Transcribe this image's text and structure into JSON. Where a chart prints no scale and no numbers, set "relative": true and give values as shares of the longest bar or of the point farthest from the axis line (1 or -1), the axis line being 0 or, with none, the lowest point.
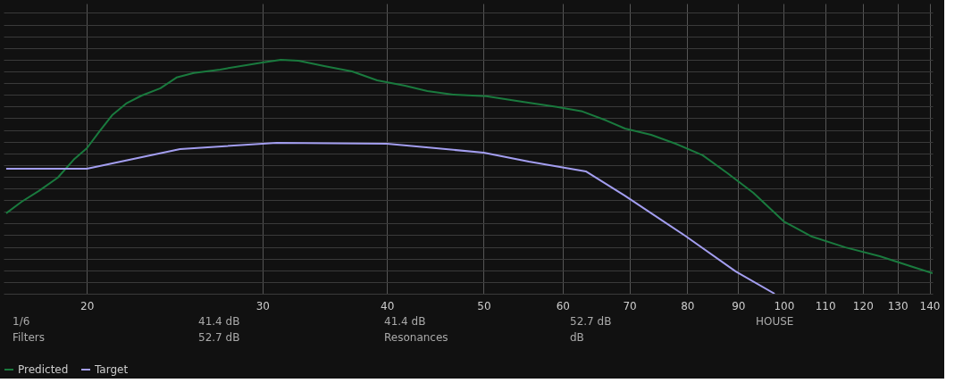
{
  "chart_data": {
    "type": "line",
    "relative": true,
    "log": "x",
    "grid": true,
    "legend": "bottom",
    "line_style": "solid",
    "marker": "none",
    "xlim": [
      16.5,
      141
    ],
    "xticks": [
      20,
      30,
      40,
      50,
      60,
      70,
      80,
      90,
      100,
      110,
      120,
      130,
      140
    ],
    "series": [
      {
        "name": "Predicted",
        "color": "#1a7a3e",
        "x": [
          16.6,
          17.2,
          17.9,
          18.7,
          19.4,
          20,
          20.6,
          21.2,
          21.9,
          22.7,
          23.7,
          24.6,
          25.6,
          27.2,
          28.9,
          30.1,
          31.3,
          32.6,
          34.6,
          36.9,
          39.1,
          41.7,
          43.9,
          46.6,
          50.3,
          54.5,
          59.2,
          62.8,
          66.4,
          69.3,
          73.6,
          77.9,
          82.9,
          87.8,
          93.2,
          100,
          106.7,
          115.3,
          124.8,
          133,
          141
        ],
        "values": [
          0.344,
          0.393,
          0.439,
          0.496,
          0.573,
          0.622,
          0.695,
          0.763,
          0.813,
          0.847,
          0.878,
          0.924,
          0.943,
          0.958,
          0.977,
          0.989,
          1,
          0.996,
          0.973,
          0.95,
          0.912,
          0.889,
          0.866,
          0.851,
          0.844,
          0.821,
          0.798,
          0.779,
          0.74,
          0.706,
          0.679,
          0.641,
          0.592,
          0.515,
          0.431,
          0.309,
          0.244,
          0.198,
          0.16,
          0.122,
          0.088
        ]
      },
      {
        "name": "Target",
        "color": "#a39ef0",
        "x": [
          16.6,
          20,
          24.8,
          31,
          40,
          50,
          55.5,
          63.3,
          69.2,
          79.6,
          89.5,
          97.9
        ],
        "values": [
          0.534,
          0.534,
          0.618,
          0.645,
          0.641,
          0.603,
          0.565,
          0.523,
          0.42,
          0.248,
          0.095,
          0
        ]
      }
    ],
    "annotations": [
      "1/6",
      "41.4 dB",
      "41.4 dB",
      "52.7 dB",
      "HOUSE",
      "Filters",
      "52.7 dB",
      "Resonances",
      "dB"
    ]
  }
}
